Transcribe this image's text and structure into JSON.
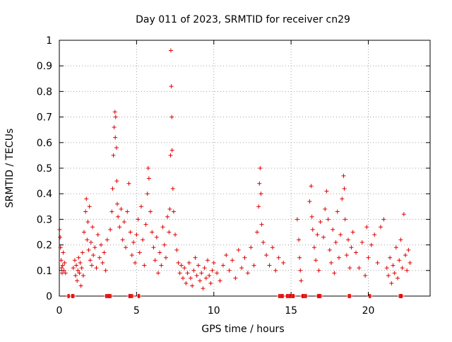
{
  "chart_data": {
    "type": "scatter",
    "title": "Day 011 of 2023, SRMTID for receiver cn29",
    "xlabel": "GPS time / hours",
    "ylabel": "SRMTID / TECUs",
    "xlim": [
      0,
      24
    ],
    "ylim": [
      0,
      1
    ],
    "xticks": [
      0,
      5,
      10,
      15,
      20
    ],
    "xtick_labels": [
      "0",
      "5",
      "10",
      "15",
      "20"
    ],
    "yticks": [
      0,
      0.1,
      0.2,
      0.3,
      0.4,
      0.5,
      0.6,
      0.7,
      0.8,
      0.9,
      1
    ],
    "ytick_labels": [
      "0",
      "0.1",
      "0.2",
      "0.3",
      "0.4",
      "0.5",
      "0.6",
      "0.7",
      "0.8",
      "0.9",
      "1"
    ],
    "grid": true,
    "marker": "+",
    "color": "#e00000",
    "series": [
      {
        "name": "SRMTID",
        "points": [
          [
            0.02,
            0.26
          ],
          [
            0.05,
            0.23
          ],
          [
            0.08,
            0.19
          ],
          [
            0.12,
            0.14
          ],
          [
            0.15,
            0.11
          ],
          [
            0.18,
            0.09
          ],
          [
            0.22,
            0.12
          ],
          [
            0.25,
            0.17
          ],
          [
            0.3,
            0.1
          ],
          [
            0.35,
            0.13
          ],
          [
            0.4,
            0.09
          ],
          [
            0.9,
            0.11
          ],
          [
            1.0,
            0.14
          ],
          [
            1.05,
            0.08
          ],
          [
            1.1,
            0.12
          ],
          [
            1.15,
            0.06
          ],
          [
            1.2,
            0.1
          ],
          [
            1.25,
            0.15
          ],
          [
            1.3,
            0.09
          ],
          [
            1.35,
            0.13
          ],
          [
            1.4,
            0.04
          ],
          [
            1.45,
            0.11
          ],
          [
            1.5,
            0.17
          ],
          [
            1.55,
            0.08
          ],
          [
            1.6,
            0.25
          ],
          [
            1.7,
            0.33
          ],
          [
            1.75,
            0.38
          ],
          [
            1.8,
            0.22
          ],
          [
            1.85,
            0.29
          ],
          [
            1.9,
            0.18
          ],
          [
            1.95,
            0.35
          ],
          [
            2.0,
            0.14
          ],
          [
            2.05,
            0.21
          ],
          [
            2.1,
            0.12
          ],
          [
            2.15,
            0.27
          ],
          [
            2.2,
            0.16
          ],
          [
            2.3,
            0.19
          ],
          [
            2.4,
            0.11
          ],
          [
            2.5,
            0.24
          ],
          [
            2.6,
            0.15
          ],
          [
            2.7,
            0.2
          ],
          [
            2.8,
            0.13
          ],
          [
            2.9,
            0.17
          ],
          [
            3.0,
            0.1
          ],
          [
            3.1,
            0.22
          ],
          [
            3.3,
            0.26
          ],
          [
            3.4,
            0.33
          ],
          [
            3.45,
            0.42
          ],
          [
            3.5,
            0.55
          ],
          [
            3.55,
            0.66
          ],
          [
            3.6,
            0.72
          ],
          [
            3.62,
            0.62
          ],
          [
            3.65,
            0.7
          ],
          [
            3.7,
            0.58
          ],
          [
            3.72,
            0.45
          ],
          [
            3.75,
            0.36
          ],
          [
            3.8,
            0.31
          ],
          [
            3.9,
            0.27
          ],
          [
            4.0,
            0.34
          ],
          [
            4.1,
            0.22
          ],
          [
            4.2,
            0.29
          ],
          [
            4.3,
            0.19
          ],
          [
            4.4,
            0.33
          ],
          [
            4.5,
            0.44
          ],
          [
            4.6,
            0.25
          ],
          [
            4.7,
            0.16
          ],
          [
            4.8,
            0.21
          ],
          [
            4.9,
            0.13
          ],
          [
            5.0,
            0.24
          ],
          [
            5.1,
            0.3
          ],
          [
            5.2,
            0.17
          ],
          [
            5.3,
            0.35
          ],
          [
            5.4,
            0.22
          ],
          [
            5.5,
            0.12
          ],
          [
            5.6,
            0.28
          ],
          [
            5.7,
            0.4
          ],
          [
            5.75,
            0.5
          ],
          [
            5.8,
            0.46
          ],
          [
            5.9,
            0.33
          ],
          [
            6.0,
            0.25
          ],
          [
            6.1,
            0.19
          ],
          [
            6.2,
            0.14
          ],
          [
            6.3,
            0.23
          ],
          [
            6.4,
            0.09
          ],
          [
            6.5,
            0.17
          ],
          [
            6.6,
            0.12
          ],
          [
            6.7,
            0.27
          ],
          [
            6.8,
            0.2
          ],
          [
            6.9,
            0.15
          ],
          [
            7.0,
            0.31
          ],
          [
            7.1,
            0.25
          ],
          [
            7.15,
            0.34
          ],
          [
            7.2,
            0.55
          ],
          [
            7.22,
            0.96
          ],
          [
            7.25,
            0.82
          ],
          [
            7.28,
            0.7
          ],
          [
            7.3,
            0.57
          ],
          [
            7.35,
            0.42
          ],
          [
            7.4,
            0.33
          ],
          [
            7.5,
            0.24
          ],
          [
            7.6,
            0.18
          ],
          [
            7.7,
            0.13
          ],
          [
            7.8,
            0.09
          ],
          [
            7.9,
            0.12
          ],
          [
            8.0,
            0.07
          ],
          [
            8.1,
            0.11
          ],
          [
            8.2,
            0.05
          ],
          [
            8.3,
            0.09
          ],
          [
            8.4,
            0.13
          ],
          [
            8.5,
            0.07
          ],
          [
            8.6,
            0.04
          ],
          [
            8.7,
            0.1
          ],
          [
            8.8,
            0.15
          ],
          [
            8.9,
            0.08
          ],
          [
            9.0,
            0.12
          ],
          [
            9.1,
            0.06
          ],
          [
            9.2,
            0.09
          ],
          [
            9.3,
            0.03
          ],
          [
            9.4,
            0.11
          ],
          [
            9.5,
            0.07
          ],
          [
            9.6,
            0.14
          ],
          [
            9.7,
            0.08
          ],
          [
            9.8,
            0.05
          ],
          [
            9.9,
            0.1
          ],
          [
            10.0,
            0.13
          ],
          [
            10.2,
            0.09
          ],
          [
            10.4,
            0.06
          ],
          [
            10.6,
            0.12
          ],
          [
            10.8,
            0.16
          ],
          [
            11.0,
            0.1
          ],
          [
            11.2,
            0.14
          ],
          [
            11.4,
            0.07
          ],
          [
            11.6,
            0.18
          ],
          [
            11.8,
            0.11
          ],
          [
            12.0,
            0.15
          ],
          [
            12.2,
            0.09
          ],
          [
            12.4,
            0.19
          ],
          [
            12.6,
            0.12
          ],
          [
            12.8,
            0.25
          ],
          [
            12.9,
            0.35
          ],
          [
            12.95,
            0.44
          ],
          [
            13.0,
            0.5
          ],
          [
            13.05,
            0.4
          ],
          [
            13.1,
            0.28
          ],
          [
            13.2,
            0.21
          ],
          [
            13.4,
            0.16
          ],
          [
            13.6,
            0.12
          ],
          [
            13.8,
            0.19
          ],
          [
            14.0,
            0.1
          ],
          [
            14.2,
            0.15
          ],
          [
            14.5,
            0.13
          ],
          [
            15.4,
            0.3
          ],
          [
            15.5,
            0.22
          ],
          [
            15.55,
            0.15
          ],
          [
            15.6,
            0.1
          ],
          [
            15.65,
            0.06
          ],
          [
            16.2,
            0.37
          ],
          [
            16.3,
            0.43
          ],
          [
            16.35,
            0.31
          ],
          [
            16.4,
            0.26
          ],
          [
            16.5,
            0.19
          ],
          [
            16.6,
            0.14
          ],
          [
            16.7,
            0.24
          ],
          [
            16.8,
            0.1
          ],
          [
            16.9,
            0.29
          ],
          [
            17.1,
            0.23
          ],
          [
            17.2,
            0.34
          ],
          [
            17.3,
            0.41
          ],
          [
            17.4,
            0.3
          ],
          [
            17.5,
            0.18
          ],
          [
            17.6,
            0.13
          ],
          [
            17.7,
            0.26
          ],
          [
            17.8,
            0.09
          ],
          [
            17.9,
            0.21
          ],
          [
            18.0,
            0.33
          ],
          [
            18.1,
            0.15
          ],
          [
            18.2,
            0.24
          ],
          [
            18.3,
            0.38
          ],
          [
            18.4,
            0.47
          ],
          [
            18.45,
            0.42
          ],
          [
            18.5,
            0.3
          ],
          [
            18.6,
            0.16
          ],
          [
            18.7,
            0.22
          ],
          [
            18.8,
            0.11
          ],
          [
            18.9,
            0.19
          ],
          [
            19.0,
            0.25
          ],
          [
            19.2,
            0.17
          ],
          [
            19.4,
            0.11
          ],
          [
            19.6,
            0.21
          ],
          [
            19.8,
            0.08
          ],
          [
            19.9,
            0.27
          ],
          [
            20.0,
            0.15
          ],
          [
            20.2,
            0.2
          ],
          [
            20.4,
            0.24
          ],
          [
            20.6,
            0.13
          ],
          [
            20.8,
            0.27
          ],
          [
            21.0,
            0.3
          ],
          [
            21.2,
            0.11
          ],
          [
            21.3,
            0.08
          ],
          [
            21.4,
            0.15
          ],
          [
            21.5,
            0.05
          ],
          [
            21.6,
            0.12
          ],
          [
            21.7,
            0.09
          ],
          [
            21.8,
            0.19
          ],
          [
            21.9,
            0.07
          ],
          [
            22.0,
            0.14
          ],
          [
            22.1,
            0.22
          ],
          [
            22.2,
            0.11
          ],
          [
            22.3,
            0.32
          ],
          [
            22.4,
            0.16
          ],
          [
            22.5,
            0.1
          ],
          [
            22.6,
            0.18
          ],
          [
            22.7,
            0.13
          ]
        ]
      }
    ],
    "baseline_zero_clusters": [
      [
        0.55,
        0.65
      ],
      [
        0.8,
        0.95
      ],
      [
        3.0,
        3.35
      ],
      [
        4.5,
        4.75
      ],
      [
        5.1,
        5.2
      ],
      [
        14.2,
        14.5
      ],
      [
        14.7,
        15.2
      ],
      [
        15.7,
        16.0
      ],
      [
        16.7,
        16.95
      ],
      [
        18.7,
        18.85
      ],
      [
        20.05,
        20.15
      ],
      [
        22.0,
        22.2
      ]
    ]
  }
}
